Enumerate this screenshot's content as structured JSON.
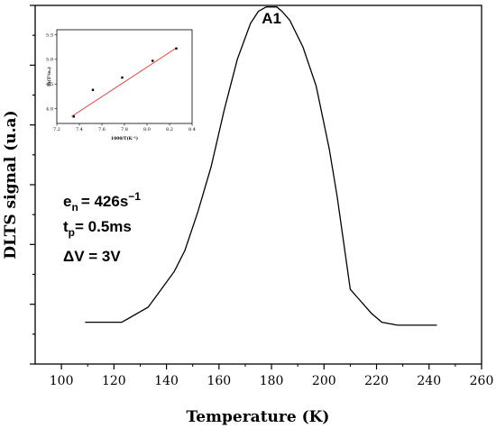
{
  "chart_data": [
    {
      "type": "line",
      "xlabel": "Temperature (K)",
      "ylabel": "DLTS signal (u.a)",
      "xlim": [
        90,
        260
      ],
      "ylim": [
        0,
        1.2
      ],
      "x_ticks": [
        100,
        120,
        140,
        160,
        180,
        200,
        220,
        240,
        260
      ],
      "y_tick_labels_shown": false,
      "peak_label": {
        "text": "A1",
        "x": 180
      },
      "annotation": {
        "line1_base": "e",
        "line1_sub": "n",
        "line1_rest": "= 426s",
        "line1_sup": "−1",
        "line2_base": "t",
        "line2_sub": "p",
        "line2_rest": "= 0.5ms",
        "line3": "ΔV = 3V"
      },
      "series": [
        {
          "x": [
            109,
            123,
            133,
            138,
            143,
            147,
            152,
            157,
            162,
            167,
            172,
            175,
            178,
            182,
            184,
            187,
            192,
            197,
            202,
            205,
            210,
            213,
            218,
            222,
            228,
            232,
            237,
            243
          ],
          "y": [
            0.14,
            0.14,
            0.19,
            0.25,
            0.31,
            0.38,
            0.51,
            0.66,
            0.85,
            1.02,
            1.14,
            1.18,
            1.195,
            1.195,
            1.18,
            1.15,
            1.06,
            0.93,
            0.72,
            0.56,
            0.25,
            0.22,
            0.17,
            0.14,
            0.13,
            0.13,
            0.13,
            0.13
          ]
        }
      ]
    },
    {
      "type": "scatter",
      "inset": true,
      "xlabel": "1000/T(K⁻¹)",
      "ylabel": "ln(T²/eₙ)",
      "xlim": [
        7.2,
        8.4
      ],
      "ylim": [
        3.7,
        5.6
      ],
      "x_ticks": [
        7.2,
        7.4,
        7.6,
        7.8,
        8.0,
        8.2,
        8.4
      ],
      "y_ticks": [
        4.0,
        4.5,
        5.0,
        5.5
      ],
      "series": [
        {
          "x": [
            7.35,
            7.52,
            7.78,
            8.05,
            8.26
          ],
          "y": [
            3.84,
            4.38,
            4.63,
            4.97,
            5.22
          ]
        }
      ],
      "fit": {
        "x": [
          7.33,
          8.26
        ],
        "y": [
          3.84,
          5.23
        ],
        "color": "#e53935"
      }
    }
  ]
}
